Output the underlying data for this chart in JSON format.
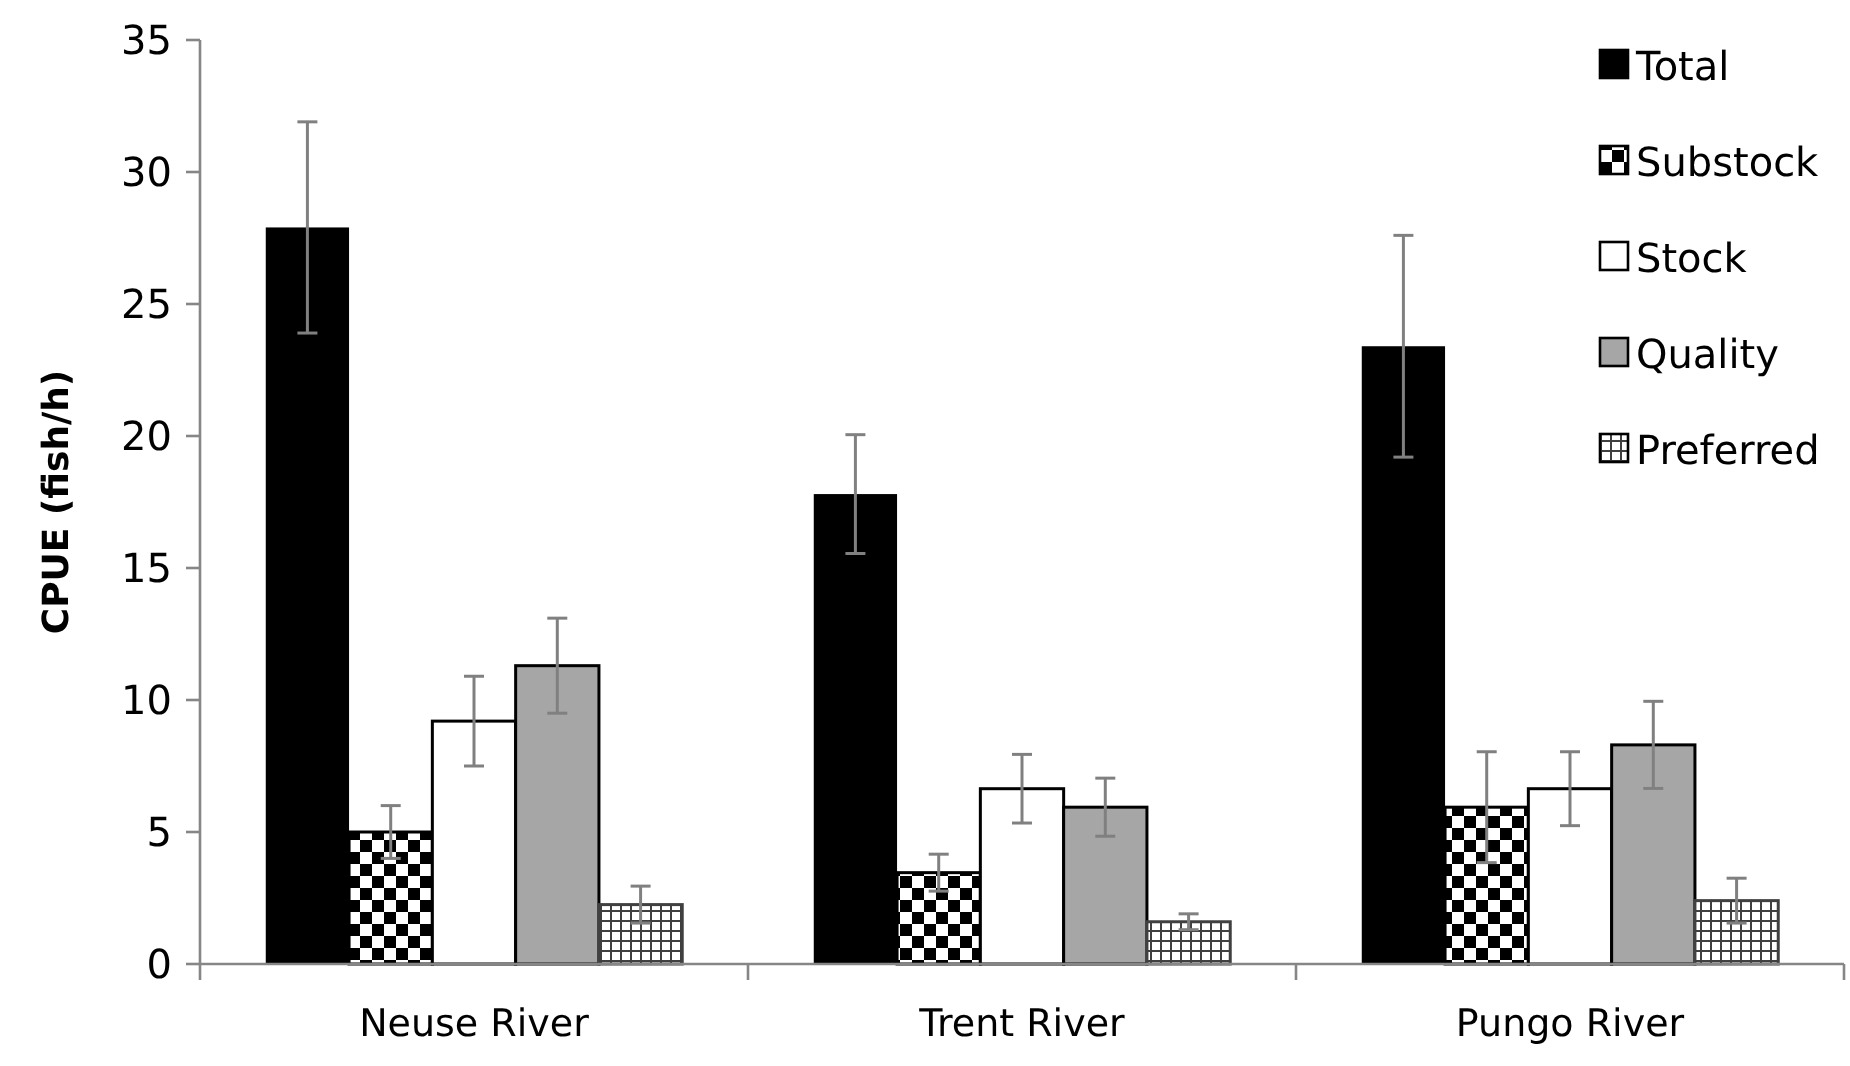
{
  "chart_data": {
    "type": "bar",
    "ylabel": "CPUE (fish/h)",
    "categories": [
      "Neuse River",
      "Trent River",
      "Pungo River"
    ],
    "series": [
      {
        "name": "Total",
        "color": "#000000",
        "values": [
          27.9,
          17.8,
          23.4
        ],
        "errors": [
          4.0,
          2.25,
          4.2
        ]
      },
      {
        "name": "Substock",
        "color": "#000000",
        "values": [
          5.0,
          3.46,
          5.94
        ],
        "errors": [
          1.0,
          0.7,
          2.1
        ]
      },
      {
        "name": "Stock",
        "color": "#ffffff",
        "values": [
          9.2,
          6.64,
          6.64
        ],
        "errors": [
          1.7,
          1.3,
          1.4
        ]
      },
      {
        "name": "Quality",
        "color": "#a6a6a6",
        "values": [
          11.3,
          5.94,
          8.3
        ],
        "errors": [
          1.8,
          1.1,
          1.65
        ]
      },
      {
        "name": "Preferred",
        "color": "#404040",
        "values": [
          2.25,
          1.6,
          2.4
        ],
        "errors": [
          0.7,
          0.3,
          0.85
        ]
      }
    ],
    "ylim": [
      0,
      35
    ],
    "yticks": [
      0,
      5,
      10,
      15,
      20,
      25,
      30,
      35
    ],
    "grid": false,
    "legend": "top right"
  }
}
